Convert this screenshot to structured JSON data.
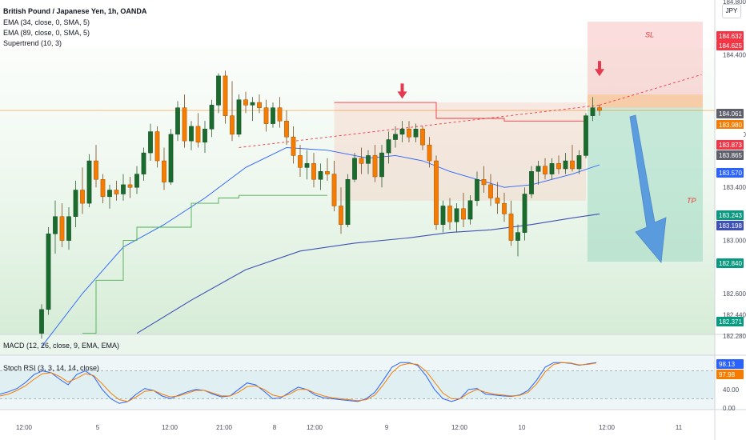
{
  "header": {
    "title": "British Pound / Japanese Yen, 1h, OANDA",
    "indicators": [
      "EMA (34, close, 0, SMA, 5)",
      "EMA (89, close, 0, SMA, 5)",
      "Supertrend (10, 3)"
    ],
    "currency": "JPY"
  },
  "subpanes": {
    "macd": "MACD (12, 26, close, 9, EMA, EMA)",
    "stoch": "Stoch RSI (3, 3, 14, 14, close)"
  },
  "annotations": {
    "sl": "SL",
    "tp": "TP"
  },
  "colors": {
    "up": "#22ab94",
    "down": "#f57c00",
    "ema34": "#2962ff",
    "ema89": "#3f51b5",
    "supertrend_up": "#4caf50",
    "supertrend_down": "#f23645",
    "trendline": "#f23645",
    "arrow": "#2f7de1"
  },
  "chart_data": [
    {
      "type": "candlestick",
      "ylim": [
        182.28,
        184.8
      ],
      "y_ticks": [
        184.8,
        184.4,
        183.8,
        183.4,
        183.0,
        182.6,
        182.44,
        182.28
      ],
      "x_ticks": [
        "12:00",
        "5",
        "12:00",
        "21:00",
        "8",
        "12:00",
        "9",
        "12:00",
        "10",
        "12:00",
        "11"
      ],
      "price_tags": [
        {
          "value": "184.632",
          "color": "#f23645"
        },
        {
          "value": "184.625",
          "color": "#f23645"
        },
        {
          "value": "184.061",
          "color": "#5d606b"
        },
        {
          "value": "183.980",
          "color": "#f57c00"
        },
        {
          "value": "53:51",
          "color": "#f57c00"
        },
        {
          "value": "183.873",
          "color": "#f23645"
        },
        {
          "value": "183.865",
          "color": "#5d606b"
        },
        {
          "value": "183.570",
          "color": "#2962ff"
        },
        {
          "value": "183.243",
          "color": "#089981"
        },
        {
          "value": "183.198",
          "color": "#3f51b5"
        },
        {
          "value": "182.840",
          "color": "#089981"
        },
        {
          "value": "182.371",
          "color": "#089981"
        }
      ],
      "last_price": 183.98,
      "position": {
        "entry": 184.0,
        "stop": 184.6,
        "target": 182.84
      },
      "ohlc": [
        [
          182.3,
          182.52,
          182.26,
          182.48
        ],
        [
          182.48,
          183.1,
          182.44,
          183.05
        ],
        [
          183.05,
          183.3,
          182.9,
          183.18
        ],
        [
          183.18,
          183.28,
          182.95,
          183.0
        ],
        [
          183.0,
          183.25,
          182.93,
          183.18
        ],
        [
          183.18,
          183.45,
          183.1,
          183.38
        ],
        [
          183.38,
          183.55,
          183.2,
          183.28
        ],
        [
          183.28,
          183.65,
          183.25,
          183.6
        ],
        [
          183.6,
          183.72,
          183.4,
          183.46
        ],
        [
          183.46,
          183.5,
          183.28,
          183.33
        ],
        [
          183.33,
          183.42,
          183.24,
          183.38
        ],
        [
          183.38,
          183.45,
          183.3,
          183.35
        ],
        [
          183.35,
          183.5,
          183.3,
          183.42
        ],
        [
          183.42,
          183.48,
          183.32,
          183.4
        ],
        [
          183.4,
          183.56,
          183.35,
          183.5
        ],
        [
          183.5,
          183.7,
          183.45,
          183.66
        ],
        [
          183.66,
          183.88,
          183.6,
          183.82
        ],
        [
          183.82,
          183.86,
          183.55,
          183.6
        ],
        [
          183.6,
          183.7,
          183.38,
          183.44
        ],
        [
          183.44,
          183.84,
          183.42,
          183.8
        ],
        [
          183.8,
          184.05,
          183.75,
          184.0
        ],
        [
          184.0,
          184.1,
          183.7,
          183.75
        ],
        [
          183.75,
          183.9,
          183.68,
          183.86
        ],
        [
          183.86,
          183.96,
          183.7,
          183.74
        ],
        [
          183.74,
          183.9,
          183.66,
          183.84
        ],
        [
          183.84,
          184.06,
          183.78,
          184.02
        ],
        [
          184.02,
          184.26,
          183.96,
          184.24
        ],
        [
          184.24,
          184.28,
          183.88,
          183.94
        ],
        [
          183.94,
          184.2,
          183.75,
          183.8
        ],
        [
          183.8,
          184.1,
          183.78,
          184.06
        ],
        [
          184.06,
          184.12,
          183.96,
          184.02
        ],
        [
          184.02,
          184.08,
          183.9,
          184.04
        ],
        [
          184.04,
          184.1,
          183.96,
          184.0
        ],
        [
          184.0,
          184.06,
          183.82,
          183.88
        ],
        [
          183.88,
          184.04,
          183.85,
          184.0
        ],
        [
          184.0,
          184.08,
          183.85,
          183.9
        ],
        [
          183.9,
          183.98,
          183.72,
          183.78
        ],
        [
          183.78,
          183.86,
          183.58,
          183.64
        ],
        [
          183.64,
          183.72,
          183.48,
          183.55
        ],
        [
          183.55,
          183.68,
          183.46,
          183.58
        ],
        [
          183.58,
          183.66,
          183.4,
          183.46
        ],
        [
          183.46,
          183.58,
          183.38,
          183.52
        ],
        [
          183.52,
          183.62,
          183.45,
          183.5
        ],
        [
          183.5,
          183.6,
          183.22,
          183.26
        ],
        [
          183.26,
          183.4,
          183.05,
          183.12
        ],
        [
          183.12,
          183.5,
          183.1,
          183.46
        ],
        [
          183.46,
          183.66,
          183.44,
          183.62
        ],
        [
          183.62,
          183.7,
          183.5,
          183.58
        ],
        [
          183.58,
          183.68,
          183.5,
          183.64
        ],
        [
          183.64,
          183.72,
          183.44,
          183.48
        ],
        [
          183.48,
          183.72,
          183.4,
          183.66
        ],
        [
          183.66,
          183.82,
          183.58,
          183.76
        ],
        [
          183.76,
          183.86,
          183.7,
          183.8
        ],
        [
          183.8,
          183.9,
          183.74,
          183.84
        ],
        [
          183.84,
          183.9,
          183.74,
          183.78
        ],
        [
          183.78,
          183.88,
          183.74,
          183.84
        ],
        [
          183.84,
          183.86,
          183.68,
          183.72
        ],
        [
          183.72,
          183.78,
          183.55,
          183.6
        ],
        [
          183.6,
          183.64,
          183.08,
          183.12
        ],
        [
          183.12,
          183.3,
          183.06,
          183.26
        ],
        [
          183.26,
          183.32,
          183.08,
          183.14
        ],
        [
          183.14,
          183.28,
          183.06,
          183.24
        ],
        [
          183.24,
          183.36,
          183.1,
          183.16
        ],
        [
          183.16,
          183.34,
          183.12,
          183.3
        ],
        [
          183.3,
          183.52,
          183.26,
          183.46
        ],
        [
          183.46,
          183.56,
          183.36,
          183.42
        ],
        [
          183.42,
          183.5,
          183.26,
          183.32
        ],
        [
          183.32,
          183.44,
          183.2,
          183.28
        ],
        [
          183.28,
          183.36,
          183.14,
          183.2
        ],
        [
          183.2,
          183.3,
          182.96,
          183.0
        ],
        [
          183.0,
          183.12,
          182.88,
          183.06
        ],
        [
          183.06,
          183.4,
          183.0,
          183.35
        ],
        [
          183.35,
          183.56,
          183.32,
          183.52
        ],
        [
          183.52,
          183.6,
          183.42,
          183.56
        ],
        [
          183.56,
          183.62,
          183.46,
          183.5
        ],
        [
          183.5,
          183.62,
          183.46,
          183.58
        ],
        [
          183.58,
          183.64,
          183.5,
          183.54
        ],
        [
          183.54,
          183.66,
          183.5,
          183.6
        ],
        [
          183.6,
          183.72,
          183.52,
          183.54
        ],
        [
          183.54,
          183.68,
          183.5,
          183.64
        ],
        [
          183.64,
          183.96,
          183.62,
          183.94
        ],
        [
          183.94,
          184.08,
          183.9,
          184.0
        ],
        [
          184.0,
          184.02,
          183.94,
          183.98
        ]
      ],
      "ema34": [
        [
          0,
          182.2
        ],
        [
          6,
          182.6
        ],
        [
          12,
          182.95
        ],
        [
          18,
          183.12
        ],
        [
          24,
          183.32
        ],
        [
          30,
          183.55
        ],
        [
          36,
          183.7
        ],
        [
          42,
          183.68
        ],
        [
          48,
          183.62
        ],
        [
          52,
          183.64
        ],
        [
          56,
          183.6
        ],
        [
          60,
          183.52
        ],
        [
          64,
          183.46
        ],
        [
          68,
          183.4
        ],
        [
          72,
          183.42
        ],
        [
          78,
          183.5
        ],
        [
          82,
          183.57
        ]
      ],
      "ema89": [
        [
          14,
          182.3
        ],
        [
          22,
          182.55
        ],
        [
          30,
          182.78
        ],
        [
          38,
          182.92
        ],
        [
          46,
          182.98
        ],
        [
          54,
          183.02
        ],
        [
          60,
          183.06
        ],
        [
          66,
          183.08
        ],
        [
          72,
          183.12
        ],
        [
          78,
          183.17
        ],
        [
          82,
          183.2
        ]
      ],
      "supertrend_up": [
        [
          6,
          182.3
        ],
        [
          8,
          182.7
        ],
        [
          12,
          183.0
        ],
        [
          14,
          183.1
        ],
        [
          22,
          183.28
        ],
        [
          26,
          183.32
        ],
        [
          29,
          183.34
        ],
        [
          36,
          183.34
        ],
        [
          40,
          183.34
        ],
        [
          42,
          183.34
        ]
      ],
      "supertrend_down": [
        [
          43,
          184.04
        ],
        [
          56,
          184.04
        ],
        [
          58,
          183.92
        ],
        [
          66,
          183.92
        ],
        [
          68,
          183.9
        ],
        [
          80,
          183.9
        ]
      ],
      "trendline": {
        "from": [
          29,
          183.7
        ],
        "to": [
          82,
          184.02
        ],
        "extend_to": 97,
        "extend_value": 184.25
      },
      "down_arrows": [
        [
          53,
          184.05
        ],
        [
          82,
          184.22
        ]
      ]
    },
    {
      "type": "line",
      "title": "Stoch RSI (3, 3, 14, 14, close)",
      "ylim": [
        0,
        100
      ],
      "y_ticks": [
        0,
        40
      ],
      "levels": [
        80,
        20
      ],
      "value_tags": [
        {
          "value": "98.13",
          "color": "#2962ff"
        },
        {
          "value": "97.98",
          "color": "#f57c00"
        }
      ],
      "series": [
        {
          "color": "#2962ff",
          "values": [
            30,
            35,
            42,
            55,
            72,
            80,
            76,
            62,
            50,
            72,
            80,
            68,
            40,
            20,
            10,
            14,
            30,
            42,
            38,
            26,
            20,
            28,
            35,
            40,
            38,
            30,
            24,
            26,
            40,
            54,
            50,
            36,
            20,
            22,
            34,
            45,
            40,
            28,
            22,
            20,
            18,
            16,
            14,
            20,
            34,
            60,
            88,
            98,
            98,
            92,
            70,
            40,
            20,
            14,
            20,
            40,
            42,
            30,
            28,
            26,
            25,
            28,
            38,
            60,
            88,
            98,
            98,
            96,
            92,
            95,
            98
          ]
        },
        {
          "color": "#f57c00",
          "values": [
            26,
            30,
            38,
            48,
            62,
            74,
            76,
            68,
            56,
            64,
            74,
            70,
            52,
            32,
            18,
            14,
            24,
            36,
            38,
            30,
            24,
            26,
            32,
            38,
            38,
            32,
            26,
            26,
            34,
            46,
            48,
            40,
            28,
            24,
            30,
            40,
            40,
            32,
            26,
            22,
            20,
            18,
            16,
            18,
            28,
            50,
            76,
            92,
            96,
            94,
            80,
            56,
            32,
            20,
            20,
            32,
            40,
            34,
            30,
            28,
            26,
            27,
            34,
            52,
            78,
            94,
            98,
            97,
            93,
            94,
            97
          ]
        }
      ]
    }
  ]
}
